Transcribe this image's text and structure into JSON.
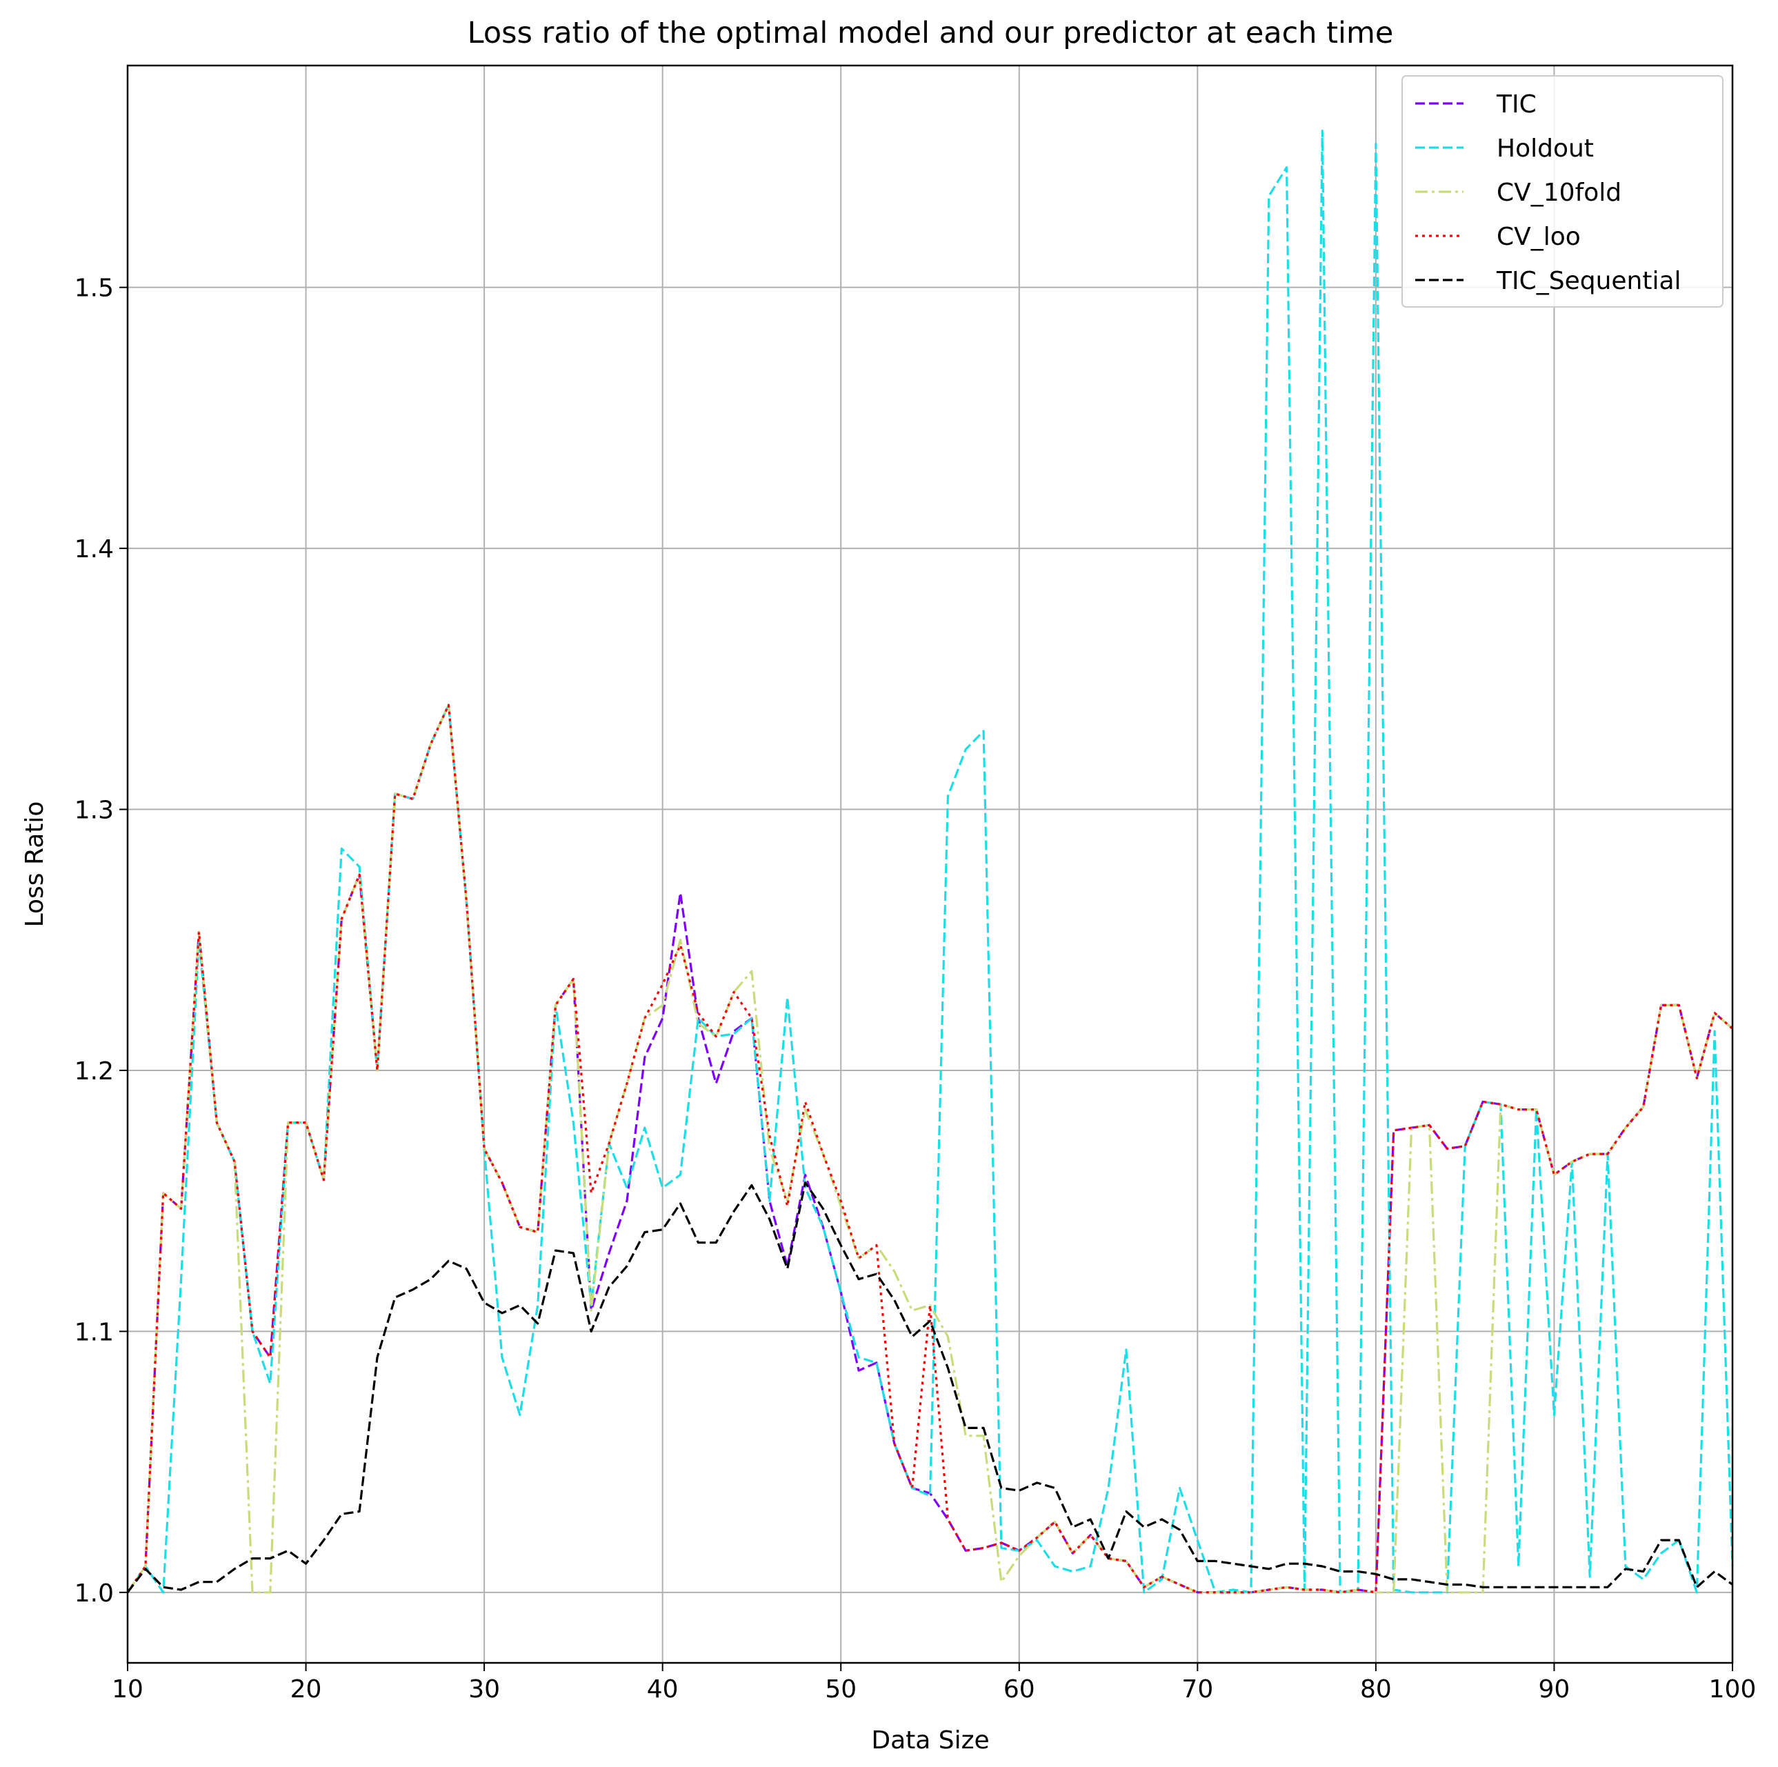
{
  "chart_data": {
    "type": "line",
    "title": "Loss ratio of the optimal model and our predictor at each time",
    "xlabel": "Data Size",
    "ylabel": "Loss Ratio",
    "xlim": [
      10,
      100
    ],
    "ylim": [
      0.973,
      1.585
    ],
    "xticks": [
      "10",
      "20",
      "30",
      "40",
      "50",
      "60",
      "70",
      "80",
      "90",
      "100"
    ],
    "yticks": [
      "1.0",
      "1.1",
      "1.2",
      "1.3",
      "1.4",
      "1.5"
    ],
    "grid": true,
    "legend_position": "top-right",
    "x": [
      10,
      11,
      12,
      13,
      14,
      15,
      16,
      17,
      18,
      19,
      20,
      21,
      22,
      23,
      24,
      25,
      26,
      27,
      28,
      29,
      30,
      31,
      32,
      33,
      34,
      35,
      36,
      37,
      38,
      39,
      40,
      41,
      42,
      43,
      44,
      45,
      46,
      47,
      48,
      49,
      50,
      51,
      52,
      53,
      54,
      55,
      56,
      57,
      58,
      59,
      60,
      61,
      62,
      63,
      64,
      65,
      66,
      67,
      68,
      69,
      70,
      71,
      72,
      73,
      74,
      75,
      76,
      77,
      78,
      79,
      80,
      81,
      82,
      83,
      84,
      85,
      86,
      87,
      88,
      89,
      90,
      91,
      92,
      93,
      94,
      95,
      96,
      97,
      98,
      99,
      100
    ],
    "series": [
      {
        "name": "TIC",
        "color": "#7f00ff",
        "dash": "dashed",
        "values": [
          1.0,
          1.01,
          1.153,
          1.147,
          1.253,
          1.18,
          1.165,
          1.1,
          1.09,
          1.18,
          1.18,
          1.158,
          1.258,
          1.275,
          1.2,
          1.306,
          1.304,
          1.325,
          1.34,
          1.265,
          1.17,
          1.157,
          1.14,
          1.138,
          1.225,
          1.235,
          1.108,
          1.13,
          1.15,
          1.205,
          1.22,
          1.268,
          1.22,
          1.195,
          1.215,
          1.22,
          1.15,
          1.125,
          1.16,
          1.14,
          1.115,
          1.085,
          1.088,
          1.057,
          1.04,
          1.038,
          1.028,
          1.016,
          1.017,
          1.019,
          1.016,
          1.021,
          1.027,
          1.015,
          1.022,
          1.013,
          1.012,
          1.002,
          1.006,
          1.003,
          1.0,
          1.0,
          1.0,
          1.0,
          1.001,
          1.002,
          1.001,
          1.001,
          1.0,
          1.001,
          1.0,
          1.177,
          1.178,
          1.179,
          1.17,
          1.171,
          1.188,
          1.187,
          1.185,
          1.185,
          1.16,
          1.165,
          1.168,
          1.168,
          1.178,
          1.186,
          1.225,
          1.225,
          1.197,
          1.222,
          1.216
        ]
      },
      {
        "name": "Holdout",
        "color": "#1ddde6",
        "dash": "dashed",
        "values": [
          1.0,
          1.01,
          1.0,
          1.12,
          1.25,
          1.18,
          1.165,
          1.1,
          1.08,
          1.18,
          1.18,
          1.158,
          1.285,
          1.278,
          1.2,
          1.306,
          1.304,
          1.325,
          1.34,
          1.265,
          1.17,
          1.09,
          1.068,
          1.11,
          1.225,
          1.18,
          1.11,
          1.172,
          1.155,
          1.178,
          1.155,
          1.16,
          1.22,
          1.213,
          1.214,
          1.22,
          1.15,
          1.228,
          1.155,
          1.14,
          1.115,
          1.09,
          1.088,
          1.057,
          1.04,
          1.037,
          1.305,
          1.323,
          1.33,
          1.017,
          1.016,
          1.02,
          1.01,
          1.008,
          1.01,
          1.04,
          1.093,
          1.0,
          1.005,
          1.04,
          1.02,
          1.0,
          1.001,
          1.0,
          1.535,
          1.546,
          1.001,
          1.56,
          1.0,
          1.001,
          1.555,
          1.001,
          1.0,
          1.0,
          1.0,
          1.171,
          1.188,
          1.187,
          1.01,
          1.185,
          1.068,
          1.165,
          1.006,
          1.168,
          1.01,
          1.005,
          1.015,
          1.02,
          1.0,
          1.215,
          1.01
        ]
      },
      {
        "name": "CV_10fold",
        "color": "#c8dd7a",
        "dash": "dashdot",
        "values": [
          1.0,
          1.01,
          1.153,
          1.147,
          1.253,
          1.18,
          1.165,
          1.0,
          1.0,
          1.18,
          1.18,
          1.158,
          1.258,
          1.275,
          1.2,
          1.306,
          1.304,
          1.325,
          1.34,
          1.265,
          1.17,
          1.157,
          1.14,
          1.138,
          1.225,
          1.235,
          1.108,
          1.172,
          1.195,
          1.22,
          1.225,
          1.25,
          1.218,
          1.213,
          1.23,
          1.238,
          1.17,
          1.15,
          1.185,
          1.168,
          1.148,
          1.128,
          1.133,
          1.123,
          1.108,
          1.11,
          1.098,
          1.06,
          1.06,
          1.004,
          1.014,
          1.021,
          1.027,
          1.015,
          1.022,
          1.013,
          1.012,
          1.002,
          1.006,
          1.003,
          1.0,
          1.0,
          1.0,
          1.0,
          1.001,
          1.002,
          1.001,
          1.001,
          1.0,
          1.001,
          1.0,
          1.0,
          1.178,
          1.179,
          1.0,
          1.0,
          1.0,
          1.187,
          1.185,
          1.185,
          1.16,
          1.165,
          1.168,
          1.168,
          1.178,
          1.186,
          1.225,
          1.225,
          1.197,
          1.222,
          1.216
        ]
      },
      {
        "name": "CV_loo",
        "color": "#ff0000",
        "dash": "dotted",
        "values": [
          1.0,
          1.01,
          1.153,
          1.147,
          1.253,
          1.18,
          1.165,
          1.1,
          1.09,
          1.18,
          1.18,
          1.158,
          1.258,
          1.275,
          1.2,
          1.306,
          1.304,
          1.325,
          1.34,
          1.265,
          1.17,
          1.157,
          1.14,
          1.138,
          1.225,
          1.235,
          1.153,
          1.172,
          1.195,
          1.22,
          1.233,
          1.248,
          1.222,
          1.213,
          1.23,
          1.22,
          1.175,
          1.148,
          1.188,
          1.168,
          1.15,
          1.128,
          1.133,
          1.057,
          1.04,
          1.11,
          1.028,
          1.016,
          1.017,
          1.019,
          1.016,
          1.021,
          1.027,
          1.015,
          1.022,
          1.013,
          1.012,
          1.002,
          1.006,
          1.003,
          1.0,
          1.0,
          1.0,
          1.0,
          1.001,
          1.002,
          1.001,
          1.001,
          1.0,
          1.001,
          1.0,
          1.177,
          1.178,
          1.179,
          1.17,
          1.171,
          1.188,
          1.187,
          1.185,
          1.185,
          1.16,
          1.165,
          1.168,
          1.168,
          1.178,
          1.186,
          1.225,
          1.225,
          1.197,
          1.222,
          1.216
        ]
      },
      {
        "name": "TIC_Sequential",
        "color": "#000000",
        "dash": "dashed",
        "values": [
          1.0,
          1.009,
          1.002,
          1.001,
          1.004,
          1.004,
          1.009,
          1.013,
          1.013,
          1.016,
          1.011,
          1.02,
          1.03,
          1.031,
          1.09,
          1.113,
          1.116,
          1.12,
          1.127,
          1.124,
          1.111,
          1.107,
          1.11,
          1.103,
          1.131,
          1.13,
          1.1,
          1.117,
          1.125,
          1.138,
          1.139,
          1.149,
          1.134,
          1.134,
          1.146,
          1.156,
          1.143,
          1.124,
          1.157,
          1.147,
          1.133,
          1.12,
          1.122,
          1.112,
          1.098,
          1.104,
          1.086,
          1.063,
          1.063,
          1.04,
          1.039,
          1.042,
          1.04,
          1.025,
          1.028,
          1.013,
          1.031,
          1.025,
          1.028,
          1.024,
          1.012,
          1.012,
          1.011,
          1.01,
          1.009,
          1.011,
          1.011,
          1.01,
          1.008,
          1.008,
          1.007,
          1.005,
          1.005,
          1.004,
          1.003,
          1.003,
          1.002,
          1.002,
          1.002,
          1.002,
          1.002,
          1.002,
          1.002,
          1.002,
          1.009,
          1.008,
          1.02,
          1.02,
          1.002,
          1.008,
          1.003
        ]
      }
    ]
  }
}
